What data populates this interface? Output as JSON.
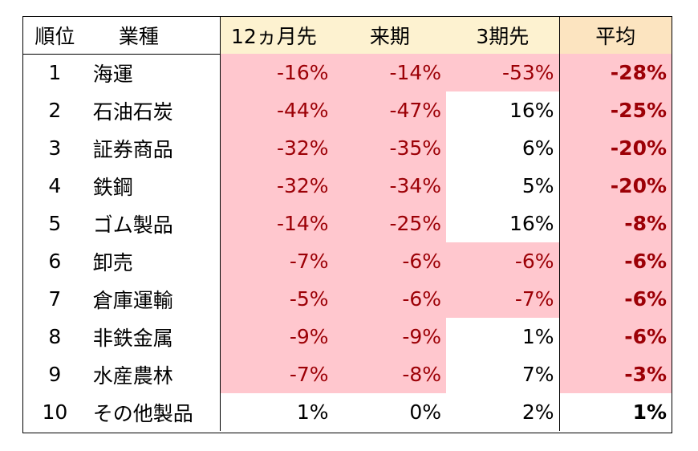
{
  "colors": {
    "header_bg": "#fdf2d0",
    "negative_bg": "#ffc7ce",
    "negative_text": "#9c0006"
  },
  "header": {
    "rank": "順位",
    "industry": "業種",
    "m12": "12ヵ月先",
    "next": "来期",
    "q3": "3期先",
    "avg": "平均"
  },
  "rows": [
    {
      "rank": "1",
      "industry": "海運",
      "m12": "-16%",
      "next": "-14%",
      "q3": "-53%",
      "avg": "-28%"
    },
    {
      "rank": "2",
      "industry": "石油石炭",
      "m12": "-44%",
      "next": "-47%",
      "q3": "16%",
      "avg": "-25%"
    },
    {
      "rank": "3",
      "industry": "証券商品",
      "m12": "-32%",
      "next": "-35%",
      "q3": "6%",
      "avg": "-20%"
    },
    {
      "rank": "4",
      "industry": "鉄鋼",
      "m12": "-32%",
      "next": "-34%",
      "q3": "5%",
      "avg": "-20%"
    },
    {
      "rank": "5",
      "industry": "ゴム製品",
      "m12": "-14%",
      "next": "-25%",
      "q3": "16%",
      "avg": "-8%"
    },
    {
      "rank": "6",
      "industry": "卸売",
      "m12": "-7%",
      "next": "-6%",
      "q3": "-6%",
      "avg": "-6%"
    },
    {
      "rank": "7",
      "industry": "倉庫運輸",
      "m12": "-5%",
      "next": "-6%",
      "q3": "-7%",
      "avg": "-6%"
    },
    {
      "rank": "8",
      "industry": "非鉄金属",
      "m12": "-9%",
      "next": "-9%",
      "q3": "1%",
      "avg": "-6%"
    },
    {
      "rank": "9",
      "industry": "水産農林",
      "m12": "-7%",
      "next": "-8%",
      "q3": "7%",
      "avg": "-3%"
    },
    {
      "rank": "10",
      "industry": "その他製品",
      "m12": "1%",
      "next": "0%",
      "q3": "2%",
      "avg": "1%"
    }
  ]
}
